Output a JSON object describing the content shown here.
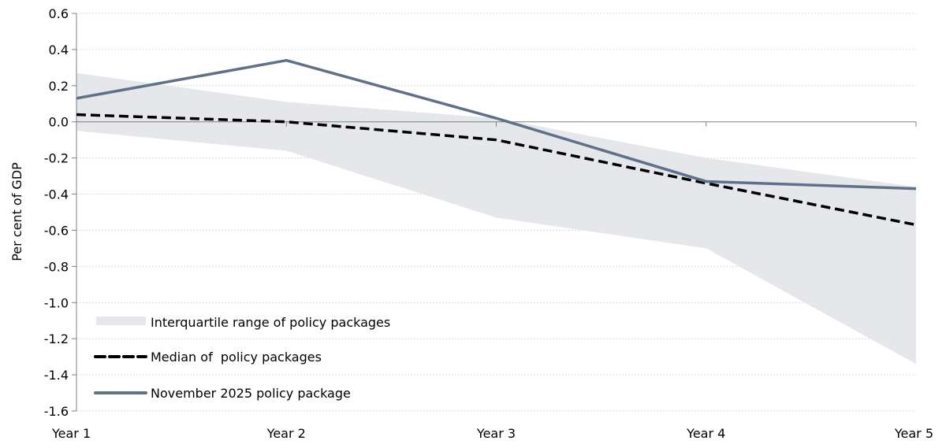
{
  "chart_data": {
    "type": "line",
    "title": "",
    "xlabel": "",
    "ylabel": "Per cent of GDP",
    "categories": [
      "Year 1",
      "Year 2",
      "Year 3",
      "Year 4",
      "Year 5"
    ],
    "ylim": [
      -1.6,
      0.6
    ],
    "yticks": [
      0.6,
      0.4,
      0.2,
      0.0,
      -0.2,
      -0.4,
      -0.6,
      -0.8,
      -1.0,
      -1.2,
      -1.4,
      -1.6
    ],
    "grid": true,
    "legend_position": "bottom-left",
    "band": {
      "name": "Interquartile range of policy packages",
      "color": "#e6e7eb",
      "upper": [
        0.27,
        0.11,
        0.02,
        -0.2,
        -0.36
      ],
      "lower": [
        -0.05,
        -0.16,
        -0.53,
        -0.7,
        -1.34
      ]
    },
    "series": [
      {
        "name": "Median of  policy packages",
        "color": "#000000",
        "style": "dashed",
        "values": [
          0.04,
          0.0,
          -0.1,
          -0.34,
          -0.57
        ]
      },
      {
        "name": "November 2025 policy package",
        "color": "#5f7189",
        "style": "solid",
        "values": [
          0.13,
          0.34,
          0.02,
          -0.33,
          -0.37
        ]
      }
    ]
  }
}
